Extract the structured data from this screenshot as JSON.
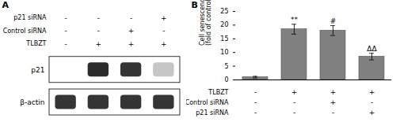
{
  "chart_data": [
    {
      "type": "blot",
      "title": "A",
      "categories": [
        null,
        null,
        null,
        null
      ],
      "x_table": [
        {
          "label": "p21 siRNA",
          "values": [
            "-",
            "-",
            "-",
            "+"
          ]
        },
        {
          "label": "Control siRNA",
          "values": [
            "-",
            "-",
            "+",
            "-"
          ]
        },
        {
          "label": "TLBZT",
          "values": [
            "-",
            "+",
            "+",
            "+"
          ]
        }
      ],
      "series": [
        {
          "name": "p21",
          "values": [
            0.0,
            0.92,
            0.88,
            0.25
          ]
        },
        {
          "name": "β-actin",
          "values": [
            0.88,
            0.88,
            0.88,
            0.88
          ]
        }
      ]
    },
    {
      "type": "bar",
      "title": "B",
      "ylabel": "Cell senescence\n(fold of control)",
      "categories": [
        null,
        null,
        null,
        null
      ],
      "x_table": [
        {
          "label": "TLBZT",
          "values": [
            "-",
            "+",
            "+",
            "+"
          ]
        },
        {
          "label": "Control siRNA",
          "values": [
            "-",
            "-",
            "+",
            "-"
          ]
        },
        {
          "label": "p21 siRNA",
          "values": [
            "-",
            "-",
            "-",
            "+"
          ]
        }
      ],
      "values": [
        1.0,
        18.5,
        18.0,
        8.5
      ],
      "errors": [
        0.3,
        1.8,
        1.8,
        1.2
      ],
      "color": "#808080",
      "ylim": [
        0,
        25
      ],
      "yticks": [
        0,
        5,
        10,
        15,
        20,
        25
      ],
      "annotations": [
        {
          "category": 1,
          "text": "**"
        },
        {
          "category": 2,
          "text": "#"
        },
        {
          "category": 3,
          "text": "ΔΔ"
        }
      ]
    }
  ]
}
